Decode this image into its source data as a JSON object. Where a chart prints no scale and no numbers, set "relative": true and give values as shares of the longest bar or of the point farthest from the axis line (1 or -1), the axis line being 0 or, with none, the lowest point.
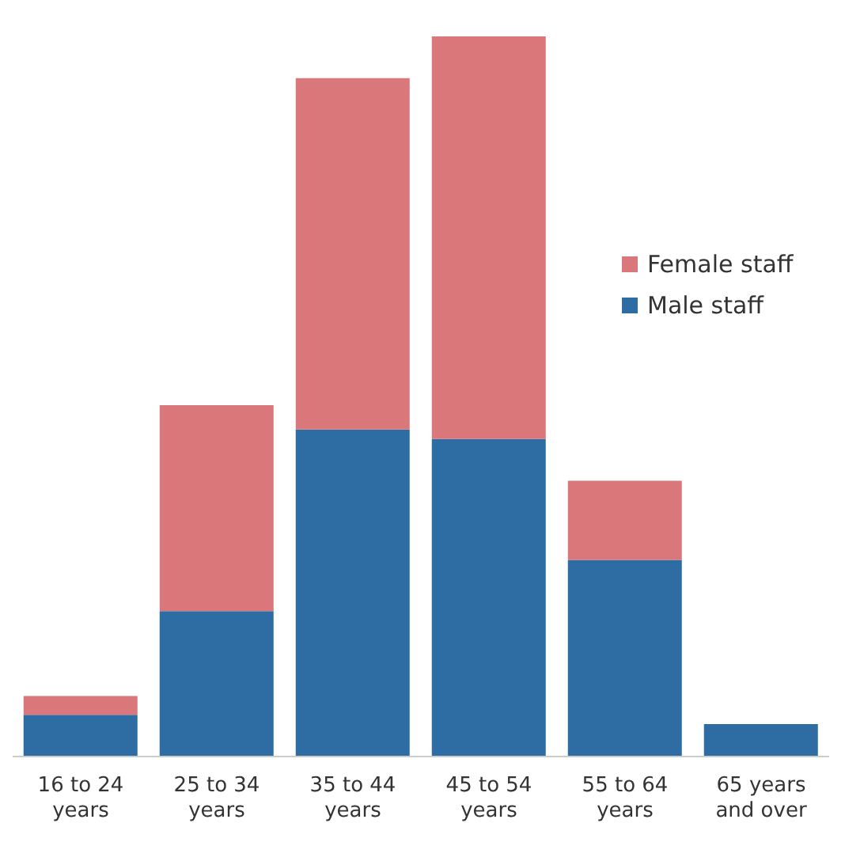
{
  "chart_data": {
    "type": "bar",
    "relative": true,
    "stacked": true,
    "legend": "right",
    "categories": [
      "16 to 24 years",
      "25 to 34 years",
      "35 to 44 years",
      "45 to 54 years",
      "55 to 64 years",
      "65 years and over"
    ],
    "series": [
      {
        "name": "Male staff",
        "color": "#2e6da4",
        "values": [
          0.058,
          0.202,
          0.454,
          0.441,
          0.273,
          0.045
        ]
      },
      {
        "name": "Female staff",
        "color": "#d9777a",
        "values": [
          0.026,
          0.286,
          0.488,
          0.559,
          0.11,
          0
        ]
      }
    ]
  }
}
